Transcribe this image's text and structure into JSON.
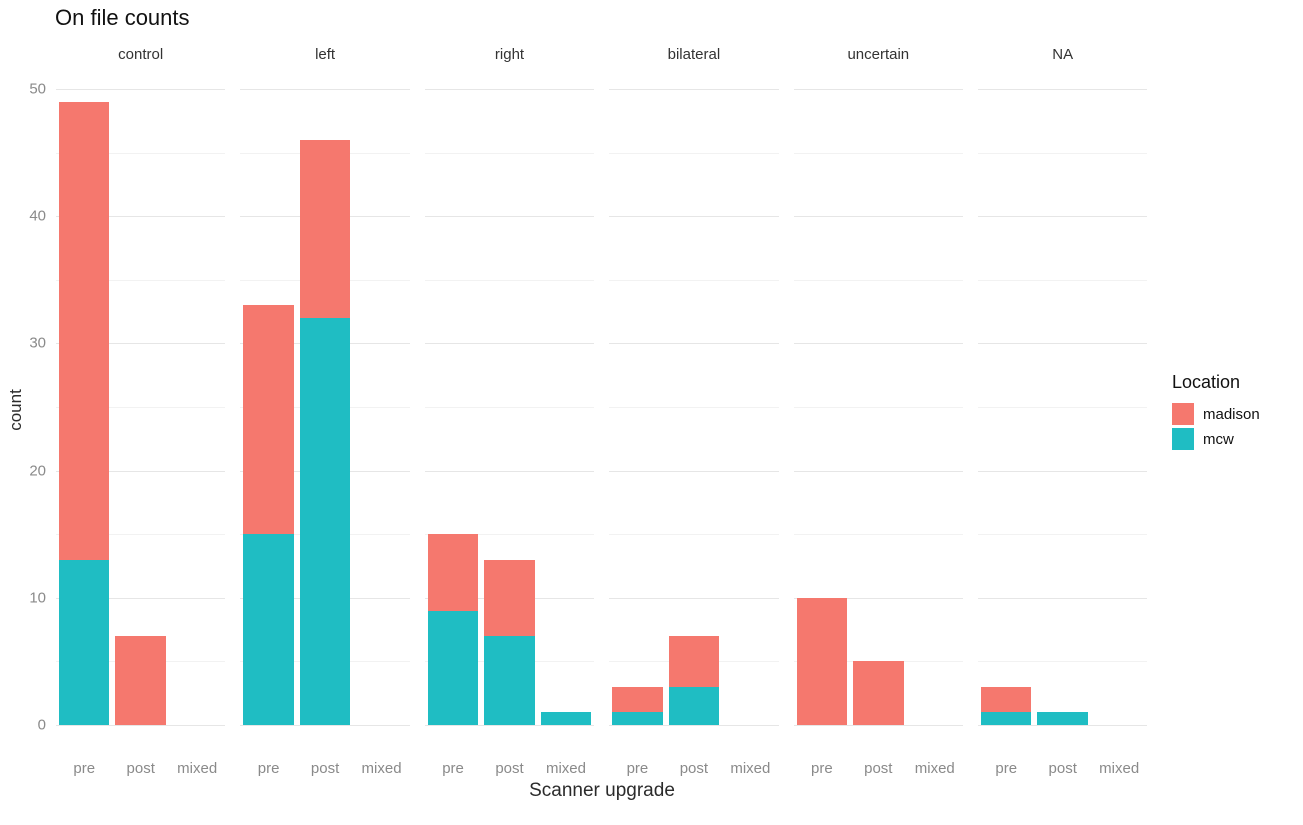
{
  "chart_data": {
    "type": "bar",
    "stacked": true,
    "title": "On file counts",
    "xlabel": "Scanner upgrade",
    "ylabel": "count",
    "ylim": [
      0,
      50
    ],
    "y_major_ticks": [
      0,
      10,
      20,
      30,
      40,
      50
    ],
    "y_minor_ticks": [
      5,
      15,
      25,
      35,
      45
    ],
    "grid": "horizontal-only",
    "categories": [
      "pre",
      "post",
      "mixed"
    ],
    "legend": {
      "title": "Location",
      "position": "right",
      "entries": [
        {
          "name": "madison",
          "color": "#f5786e"
        },
        {
          "name": "mcw",
          "color": "#1fbdc3"
        }
      ]
    },
    "stack_order_bottom_to_top": [
      "mcw",
      "madison"
    ],
    "facets": [
      {
        "label": "control",
        "series": [
          {
            "name": "mcw",
            "color": "#1fbdc3",
            "values": [
              13,
              0,
              0
            ]
          },
          {
            "name": "madison",
            "color": "#f5786e",
            "values": [
              36,
              7,
              0
            ]
          }
        ],
        "totals": [
          49,
          7,
          0
        ]
      },
      {
        "label": "left",
        "series": [
          {
            "name": "mcw",
            "color": "#1fbdc3",
            "values": [
              15,
              32,
              0
            ]
          },
          {
            "name": "madison",
            "color": "#f5786e",
            "values": [
              18,
              14,
              0
            ]
          }
        ],
        "totals": [
          33,
          46,
          0
        ]
      },
      {
        "label": "right",
        "series": [
          {
            "name": "mcw",
            "color": "#1fbdc3",
            "values": [
              9,
              7,
              1
            ]
          },
          {
            "name": "madison",
            "color": "#f5786e",
            "values": [
              6,
              6,
              0
            ]
          }
        ],
        "totals": [
          15,
          13,
          1
        ]
      },
      {
        "label": "bilateral",
        "series": [
          {
            "name": "mcw",
            "color": "#1fbdc3",
            "values": [
              1,
              3,
              0
            ]
          },
          {
            "name": "madison",
            "color": "#f5786e",
            "values": [
              2,
              4,
              0
            ]
          }
        ],
        "totals": [
          3,
          7,
          0
        ]
      },
      {
        "label": "uncertain",
        "series": [
          {
            "name": "mcw",
            "color": "#1fbdc3",
            "values": [
              0,
              0,
              0
            ]
          },
          {
            "name": "madison",
            "color": "#f5786e",
            "values": [
              10,
              5,
              0
            ]
          }
        ],
        "totals": [
          10,
          5,
          0
        ]
      },
      {
        "label": "NA",
        "series": [
          {
            "name": "mcw",
            "color": "#1fbdc3",
            "values": [
              1,
              1,
              0
            ]
          },
          {
            "name": "madison",
            "color": "#f5786e",
            "values": [
              2,
              0,
              0
            ]
          }
        ],
        "totals": [
          3,
          1,
          0
        ]
      }
    ]
  }
}
